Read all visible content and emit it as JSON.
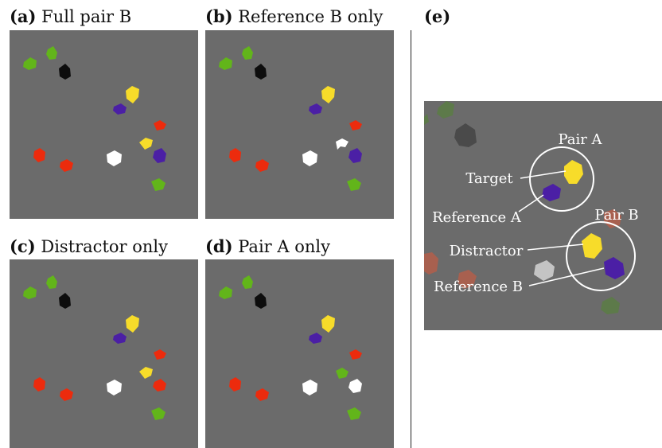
{
  "colors": {
    "background": "#6b6b6b",
    "green": "#62b51a",
    "black": "#0d0d0d",
    "yellow": "#f7dc2a",
    "purple": "#4b1fa5",
    "red": "#ec2b0d",
    "white": "#ffffff",
    "faded_green": "#5d7a4a",
    "faded_black": "#4a4a4a",
    "faded_red": "#a8604f",
    "faded_white": "#c4c4c4"
  },
  "panels": {
    "a": {
      "letter": "(a)",
      "title": "Full pair B"
    },
    "b": {
      "letter": "(b)",
      "title": "Reference B only"
    },
    "c": {
      "letter": "(c)",
      "title": "Distractor only"
    },
    "d": {
      "letter": "(d)",
      "title": "Pair A only"
    },
    "e": {
      "letter": "(e)",
      "title": ""
    }
  },
  "zoom_labels": {
    "pair_a": "Pair A",
    "pair_b": "Pair B",
    "target": "Target",
    "reference_a": "Reference A",
    "distractor": "Distractor",
    "reference_b": "Reference B"
  }
}
